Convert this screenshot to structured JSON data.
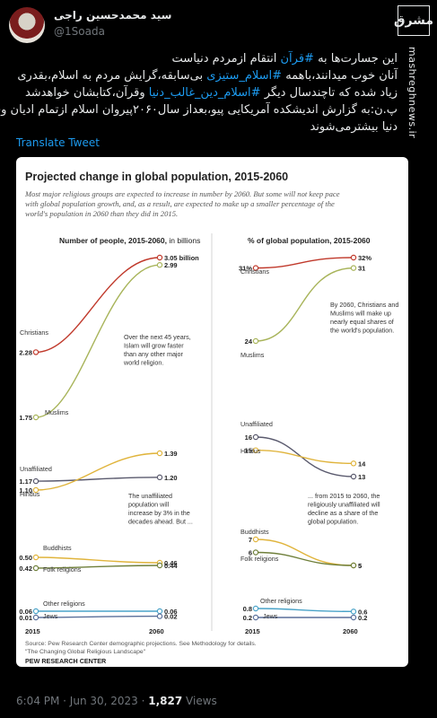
{
  "tweet": {
    "display_name": "سید محمدحسین راجی",
    "handle": "@1Soada",
    "lines": [
      [
        "این جسارت‌ها به ",
        "#قرآن",
        " انتقام ازمردم دنیاست"
      ],
      [
        "آنان خوب میدانند،باهمه ",
        "#اسلام_ستیزی",
        " بی‌سابقه،گرایش مردم به اسلام،بقدری"
      ],
      [
        "زیاد شده که تاچندسال دیگر ",
        "#اسلام_دین_غالب_دنیا",
        " وقرآن،کتابشان خواهدشد"
      ],
      [
        "پ.ن:به گزارش اندیشکده آمریکایی پیو،بعداز سال۲۰۶۰پیروان اسلام ازتمام ادیان وفِرَق",
        "",
        ""
      ],
      [
        "دنیا بیشترمی‌شوند",
        "",
        ""
      ]
    ],
    "translate_label": "Translate Tweet",
    "time": "6:04 PM · Jun 30, 2023 · ",
    "views_count": "1,827",
    "views_label": " Views"
  },
  "watermark": {
    "logo_text": "مشرق",
    "url": "mashreghnews.ir"
  },
  "chart_data": {
    "type": "line",
    "title": "Projected change in global population, 2015-2060",
    "subtitle": [
      "Most major religious groups are expected to increase in number by 2060. But some will not keep pace",
      "with global population growth, and, as a result, are expected to make up a smaller percentage of the",
      "world's population in 2060 than they did in 2015."
    ],
    "x": [
      "2015",
      "2060"
    ],
    "panels": [
      {
        "heading_bold": "Number of people, 2015-2060,",
        "heading_rest": " in billions",
        "series": [
          {
            "name": "Christians",
            "values": [
              2.28,
              3.05
            ],
            "labels": [
              "2.28",
              "3.05 billion"
            ],
            "color": "#c0392b"
          },
          {
            "name": "Muslims",
            "values": [
              1.75,
              2.99
            ],
            "labels": [
              "1.75",
              "2.99"
            ],
            "color": "#a8b45a"
          },
          {
            "name": "Unaffiliated",
            "values": [
              1.17,
              1.2
            ],
            "labels": [
              "1.17",
              "1.20"
            ],
            "color": "#5a5a6e"
          },
          {
            "name": "Hindus",
            "values": [
              1.1,
              1.39
            ],
            "labels": [
              "1.10",
              "1.39"
            ],
            "color": "#e0b43c"
          },
          {
            "name": "Buddhists",
            "values": [
              0.5,
              0.46
            ],
            "labels": [
              "0.50",
              "0.46"
            ],
            "color": "#e0b43c"
          },
          {
            "name": "Folk religions",
            "values": [
              0.42,
              0.44
            ],
            "labels": [
              "0.42",
              "0.44"
            ],
            "color": "#6f7f3a"
          },
          {
            "name": "Other religions",
            "values": [
              0.06,
              0.06
            ],
            "labels": [
              "0.06",
              "0.06"
            ],
            "color": "#4aa3c8"
          },
          {
            "name": "Jews",
            "values": [
              0.01,
              0.02
            ],
            "labels": [
              "0.01",
              "0.02"
            ],
            "color": "#5a6f9a"
          }
        ],
        "annotations": [
          "Over the next 45 years,",
          "Islam will grow faster",
          "than any other major",
          "world religion."
        ],
        "annotations2": [
          "The unaffiliated",
          "population will",
          "increase by 3% in the",
          "decades ahead. But ..."
        ]
      },
      {
        "heading": "% of global population, 2015-2060",
        "series": [
          {
            "name": "Christians",
            "values": [
              31,
              32
            ],
            "labels": [
              "31%",
              "32%"
            ],
            "color": "#c0392b"
          },
          {
            "name": "Muslims",
            "values": [
              24,
              31
            ],
            "labels": [
              "24",
              "31"
            ],
            "color": "#a8b45a"
          },
          {
            "name": "Unaffiliated",
            "values": [
              16,
              13
            ],
            "labels": [
              "16",
              "13"
            ],
            "color": "#5a5a6e"
          },
          {
            "name": "Hindus",
            "values": [
              15,
              14
            ],
            "labels": [
              "15",
              "14"
            ],
            "color": "#e0b43c"
          },
          {
            "name": "Buddhists",
            "values": [
              7,
              5
            ],
            "labels": [
              "7",
              "5"
            ],
            "color": "#e0b43c"
          },
          {
            "name": "Folk religions",
            "values": [
              6,
              5
            ],
            "labels": [
              "6",
              "5"
            ],
            "color": "#6f7f3a"
          },
          {
            "name": "Other religions",
            "values": [
              0.8,
              0.6
            ],
            "labels": [
              "0.8",
              "0.6"
            ],
            "color": "#4aa3c8"
          },
          {
            "name": "Jews",
            "values": [
              0.2,
              0.2
            ],
            "labels": [
              "0.2",
              "0.2"
            ],
            "color": "#5a6f9a"
          }
        ],
        "annotations": [
          "By 2060, Christians and",
          "Muslims will make up",
          "nearly equal shares of",
          "the world's population."
        ],
        "annotations2": [
          "... from 2015 to 2060, the",
          "religiously unaffiliated will",
          "decline as a share of the",
          "global population."
        ]
      }
    ],
    "source": [
      "Source: Pew Research Center demographic projections. See Methodology for details.",
      "\"The Changing Global Religious Landscape\""
    ],
    "brand": "PEW RESEARCH CENTER"
  }
}
